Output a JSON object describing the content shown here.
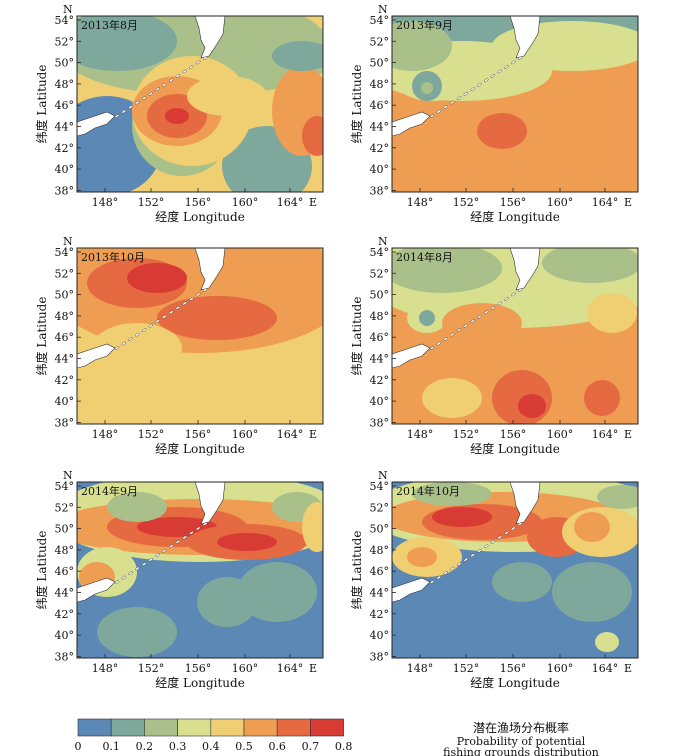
{
  "figure": {
    "panels": [
      {
        "label": "2013年8月"
      },
      {
        "label": "2013年9月"
      },
      {
        "label": "2013年10月"
      },
      {
        "label": "2014年8月"
      },
      {
        "label": "2014年9月"
      },
      {
        "label": "2014年10月"
      }
    ],
    "x_ticks": [
      "148°",
      "152°",
      "156°",
      "160°",
      "164°"
    ],
    "x_east_label": "E",
    "y_ticks": [
      "54°",
      "52°",
      "50°",
      "48°",
      "46°",
      "44°",
      "42°",
      "40°",
      "38°"
    ],
    "y_north_label": "N",
    "x_axis_title": "经度 Longitude",
    "y_axis_title": "纬度 Latitude",
    "legend": {
      "title_cn": "潜在渔场分布概率",
      "title_en_line1": "Probability of potential",
      "title_en_line2": "fishing grounds distribution",
      "tick_labels": [
        "0",
        "0.1",
        "0.2",
        "0.3",
        "0.4",
        "0.5",
        "0.6",
        "0.7",
        "0.8"
      ],
      "colors": [
        "#5b88b5",
        "#7fa89c",
        "#a9c08a",
        "#d8e08f",
        "#f0cf72",
        "#ee9d52",
        "#e56a42",
        "#d83b33"
      ]
    },
    "land_color": "#ffffff"
  }
}
